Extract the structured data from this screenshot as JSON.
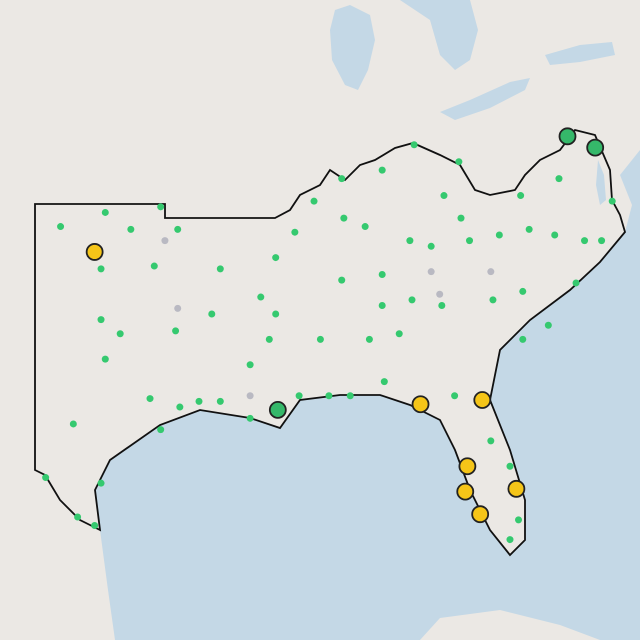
{
  "map": {
    "projection": {
      "lon0": -103,
      "lat0": 37
    },
    "layers": [
      {
        "kind": "small",
        "color": "#35c96f",
        "stroke": "none",
        "points": [
          [
            -99.7,
            36.7
          ],
          [
            -101.8,
            36.2
          ],
          [
            -98.5,
            36.1
          ],
          [
            -97.1,
            36.9
          ],
          [
            -96.3,
            36.1
          ],
          [
            -99.9,
            34.7
          ],
          [
            -97.4,
            34.8
          ],
          [
            -94.3,
            34.7
          ],
          [
            -99.9,
            32.9
          ],
          [
            -99.0,
            32.4
          ],
          [
            -96.4,
            32.5
          ],
          [
            -94.7,
            33.1
          ],
          [
            -99.7,
            31.5
          ],
          [
            -97.6,
            30.1
          ],
          [
            -101.2,
            29.2
          ],
          [
            -97.1,
            29.0
          ],
          [
            -102.5,
            27.3
          ],
          [
            -99.9,
            27.1
          ],
          [
            -101.0,
            25.9
          ],
          [
            -100.2,
            25.6
          ],
          [
            -96.2,
            29.8
          ],
          [
            -95.3,
            30.0
          ],
          [
            -94.3,
            30.0
          ],
          [
            -92.9,
            29.4
          ],
          [
            -91.7,
            33.1
          ],
          [
            -92.4,
            33.7
          ],
          [
            -91.7,
            35.1
          ],
          [
            -90.8,
            36.0
          ],
          [
            -89.9,
            37.1
          ],
          [
            -88.6,
            37.9
          ],
          [
            -86.7,
            38.2
          ],
          [
            -85.2,
            39.1
          ],
          [
            -83.1,
            38.5
          ],
          [
            -83.8,
            37.3
          ],
          [
            -83.0,
            36.5
          ],
          [
            -88.5,
            36.5
          ],
          [
            -87.5,
            36.2
          ],
          [
            -85.4,
            35.7
          ],
          [
            -84.4,
            35.5
          ],
          [
            -82.6,
            35.7
          ],
          [
            -81.2,
            35.9
          ],
          [
            -79.8,
            36.1
          ],
          [
            -78.6,
            35.9
          ],
          [
            -77.2,
            35.7
          ],
          [
            -76.4,
            35.7
          ],
          [
            -77.6,
            34.2
          ],
          [
            -88.6,
            34.3
          ],
          [
            -86.7,
            34.5
          ],
          [
            -85.3,
            33.6
          ],
          [
            -83.9,
            33.4
          ],
          [
            -81.5,
            33.6
          ],
          [
            -80.1,
            33.9
          ],
          [
            -78.9,
            32.7
          ],
          [
            -80.1,
            32.2
          ],
          [
            -92.0,
            32.2
          ],
          [
            -89.6,
            32.2
          ],
          [
            -87.3,
            32.2
          ],
          [
            -85.9,
            32.4
          ],
          [
            -88.2,
            30.2
          ],
          [
            -86.6,
            30.7
          ],
          [
            -83.3,
            30.2
          ],
          [
            -81.6,
            28.6
          ],
          [
            -80.7,
            27.7
          ],
          [
            -80.3,
            25.8
          ],
          [
            -80.7,
            25.1
          ],
          [
            -92.9,
            31.3
          ],
          [
            -90.6,
            30.2
          ],
          [
            -89.2,
            30.2
          ],
          [
            -75.9,
            37.1
          ],
          [
            -78.4,
            37.9
          ],
          [
            -80.2,
            37.3
          ],
          [
            -86.7,
            33.4
          ]
        ]
      },
      {
        "kind": "small",
        "color": "#b9b9c2",
        "stroke": "none",
        "points": [
          [
            -96.3,
            33.3
          ],
          [
            -92.9,
            30.2
          ],
          [
            -84.0,
            33.8
          ],
          [
            -81.6,
            34.6
          ],
          [
            -84.4,
            34.6
          ],
          [
            -96.9,
            35.7
          ]
        ]
      },
      {
        "kind": "large",
        "color": "#f5c518",
        "stroke": "#222222",
        "points": [
          [
            -100.2,
            35.3
          ],
          [
            -84.9,
            29.9
          ],
          [
            -82.0,
            30.05
          ],
          [
            -82.7,
            27.7
          ],
          [
            -82.8,
            26.8
          ],
          [
            -82.1,
            26.0
          ],
          [
            -80.4,
            26.9
          ]
        ]
      },
      {
        "kind": "large",
        "color": "#35b86a",
        "stroke": "#222222",
        "points": [
          [
            -78.0,
            39.4
          ],
          [
            -76.7,
            39.0
          ],
          [
            -91.6,
            29.7
          ]
        ]
      }
    ]
  }
}
